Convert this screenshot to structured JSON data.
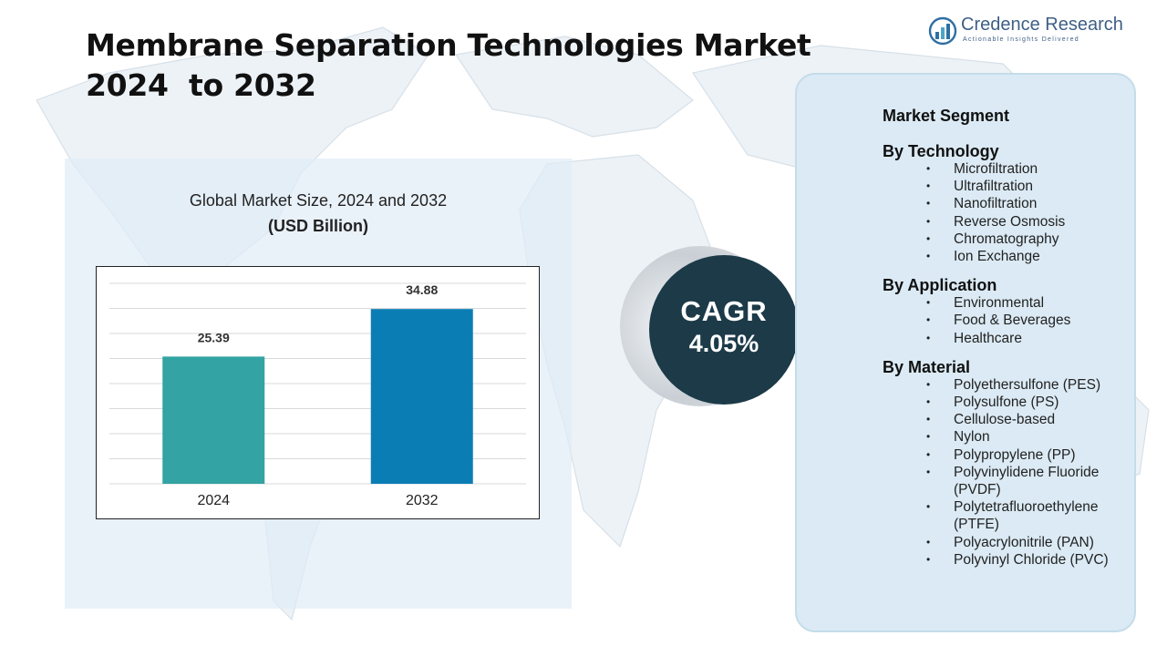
{
  "title": {
    "line1": "Membrane Separation Technologies Market",
    "line2": "2024  to 2032"
  },
  "logo": {
    "name": "Credence Research",
    "tagline": "Actionable Insights Delivered",
    "icon": "bar-chart-logo-icon"
  },
  "chart_data": {
    "type": "bar",
    "title": "Global Market Size, 2024 and 2032",
    "subtitle": "(USD Billion)",
    "categories": [
      "2024",
      "2032"
    ],
    "values": [
      25.39,
      34.88
    ],
    "data_labels": [
      "25.39",
      "34.88"
    ],
    "bar_colors": [
      "#33a3a3",
      "#0b7db5"
    ],
    "ylim": [
      0,
      40
    ],
    "grid": true,
    "legend": "none"
  },
  "cagr": {
    "label": "CAGR",
    "value": "4.05%"
  },
  "segments": {
    "title": "Market Segment",
    "groups": [
      {
        "name": "By Technology",
        "items": [
          "Microfiltration",
          "Ultrafiltration",
          "Nanofiltration",
          "Reverse Osmosis",
          "Chromatography",
          "Ion Exchange"
        ]
      },
      {
        "name": "By Application",
        "items": [
          "Environmental",
          "Food & Beverages",
          "Healthcare"
        ]
      },
      {
        "name": "By Material",
        "items": [
          "Polyethersulfone (PES)",
          "Polysulfone (PS)",
          "Cellulose-based",
          "Nylon",
          "Polypropylene (PP)",
          "Polyvinylidene Fluoride (PVDF)",
          "Polytetrafluoroethylene (PTFE)",
          "Polyacrylonitrile (PAN)",
          "Polyvinyl Chloride (PVC)"
        ]
      }
    ]
  },
  "colors": {
    "accent_dark": "#1c3a48",
    "panel_blue": "#dbeaf4"
  }
}
